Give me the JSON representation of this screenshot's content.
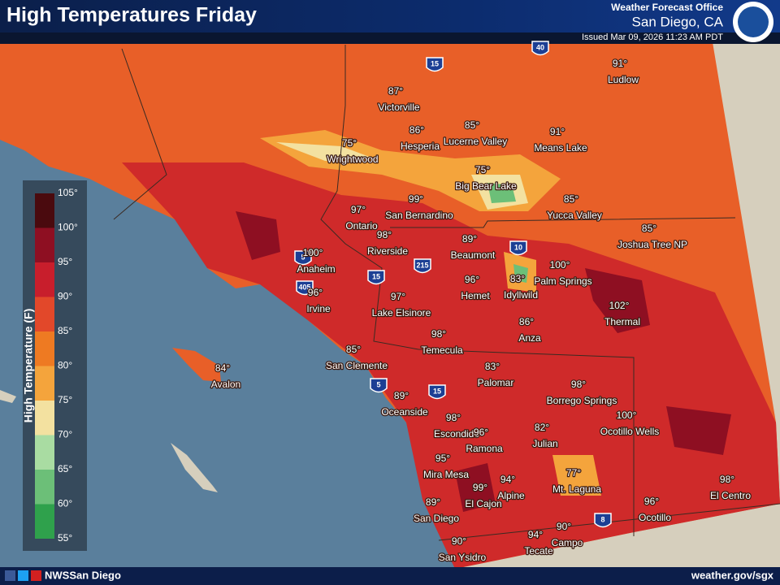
{
  "header": {
    "title": "High Temperatures Friday",
    "office": "Weather Forecast Office",
    "location": "San Diego, CA",
    "issued": "Issued Mar 09, 2026 11:23 AM PDT"
  },
  "legend": {
    "title": "High Temperature (F)",
    "ticks": [
      "105°",
      "100°",
      "95°",
      "90°",
      "85°",
      "80°",
      "75°",
      "70°",
      "65°",
      "60°",
      "55°"
    ],
    "colors": [
      "#4a0a0e",
      "#8e0f22",
      "#c81e2c",
      "#e2482a",
      "#ee7a22",
      "#f4a43c",
      "#f3e1a0",
      "#a9dca2",
      "#6cbf78",
      "#2fa14c"
    ]
  },
  "cities": [
    {
      "name": "Ludlow",
      "temp": "91°"
    },
    {
      "name": "Victorville",
      "temp": "87°"
    },
    {
      "name": "Hesperia",
      "temp": "86°"
    },
    {
      "name": "Lucerne Valley",
      "temp": "85°"
    },
    {
      "name": "Means Lake",
      "temp": "91°"
    },
    {
      "name": "Wrightwood",
      "temp": "75°"
    },
    {
      "name": "Big Bear Lake",
      "temp": "75°"
    },
    {
      "name": "San Bernardino",
      "temp": "99°"
    },
    {
      "name": "Ontario",
      "temp": "97°"
    },
    {
      "name": "Yucca Valley",
      "temp": "85°"
    },
    {
      "name": "Joshua Tree NP",
      "temp": "85°"
    },
    {
      "name": "Riverside",
      "temp": "98°"
    },
    {
      "name": "Beaumont",
      "temp": "89°"
    },
    {
      "name": "Anaheim",
      "temp": "100°"
    },
    {
      "name": "Palm Springs",
      "temp": "100°"
    },
    {
      "name": "Hemet",
      "temp": "96°"
    },
    {
      "name": "Idyllwild",
      "temp": "83°"
    },
    {
      "name": "Irvine",
      "temp": "96°"
    },
    {
      "name": "Lake Elsinore",
      "temp": "97°"
    },
    {
      "name": "Thermal",
      "temp": "102°"
    },
    {
      "name": "Anza",
      "temp": "86°"
    },
    {
      "name": "Temecula",
      "temp": "98°"
    },
    {
      "name": "San Clemente",
      "temp": "85°"
    },
    {
      "name": "Avalon",
      "temp": "84°"
    },
    {
      "name": "Palomar",
      "temp": "83°"
    },
    {
      "name": "Borrego Springs",
      "temp": "98°"
    },
    {
      "name": "Oceanside",
      "temp": "89°"
    },
    {
      "name": "Ocotillo Wells",
      "temp": "100°"
    },
    {
      "name": "Escondido",
      "temp": "98°"
    },
    {
      "name": "Ramona",
      "temp": "96°"
    },
    {
      "name": "Julian",
      "temp": "82°"
    },
    {
      "name": "Mira Mesa",
      "temp": "95°"
    },
    {
      "name": "Mt. Laguna",
      "temp": "77°"
    },
    {
      "name": "Alpine",
      "temp": "94°"
    },
    {
      "name": "El Cajon",
      "temp": "99°"
    },
    {
      "name": "El Centro",
      "temp": "98°"
    },
    {
      "name": "Ocotillo",
      "temp": "96°"
    },
    {
      "name": "San Diego",
      "temp": "89°"
    },
    {
      "name": "Campo",
      "temp": "90°"
    },
    {
      "name": "Tecate",
      "temp": "94°"
    },
    {
      "name": "San Ysidro",
      "temp": "90°"
    }
  ],
  "highways": [
    "15",
    "40",
    "5",
    "405",
    "215",
    "15",
    "10",
    "5",
    "15",
    "8"
  ],
  "footer": {
    "social": "NWSSan Diego",
    "url": "weather.gov/sgx"
  }
}
